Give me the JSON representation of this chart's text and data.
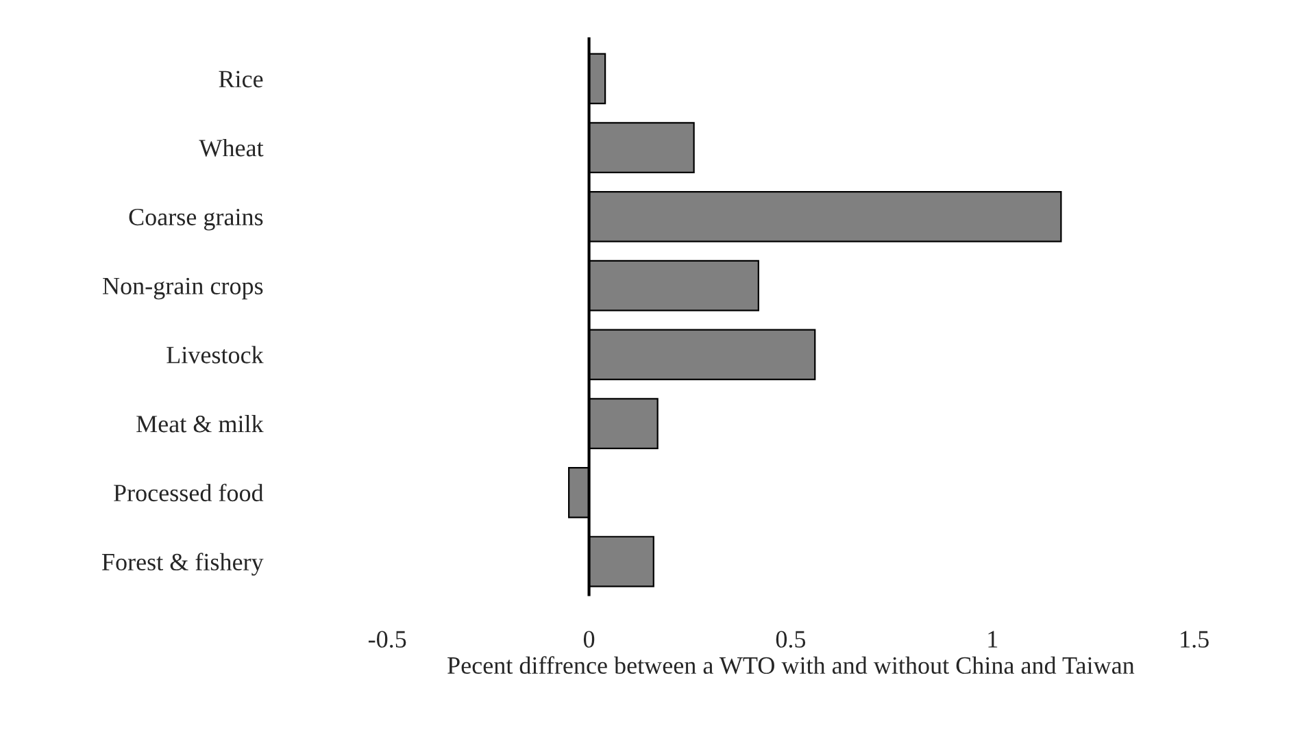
{
  "chart_data": {
    "type": "bar",
    "orientation": "horizontal",
    "categories": [
      "Rice",
      "Wheat",
      "Coarse grains",
      "Non-grain crops",
      "Livestock",
      "Meat & milk",
      "Processed food",
      "Forest & fishery"
    ],
    "values": [
      0.04,
      0.26,
      1.17,
      0.42,
      0.56,
      0.17,
      -0.05,
      0.16
    ],
    "color": "#808080",
    "xlabel": "Pecent diffrence between a WTO with and without China and Taiwan",
    "xlim": [
      -0.5,
      1.5
    ],
    "ref_lines": [
      {
        "axis": "x",
        "value": 0,
        "color": "#000000"
      }
    ],
    "xticks": [
      {
        "value": -0.5,
        "label": "-0.5"
      },
      0,
      0.5,
      1,
      1.5
    ],
    "grid": false,
    "legend": false
  }
}
